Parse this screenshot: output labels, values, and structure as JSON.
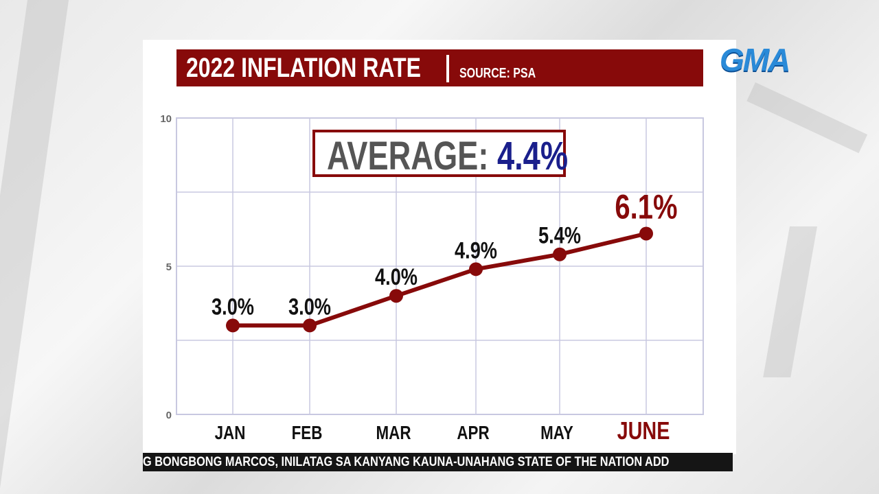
{
  "logo": "GMA",
  "header": {
    "title": "2022 INFLATION RATE",
    "source": "SOURCE: PSA"
  },
  "ticker": "G BONGBONG MARCOS, INILATAG SA KANYANG KAUNA-UNAHANG STATE OF THE NATION ADD",
  "chart_data": {
    "type": "line",
    "title": "2022 INFLATION RATE",
    "annotation": {
      "label": "AVERAGE:",
      "value": "4.4%"
    },
    "categories": [
      "JAN",
      "FEB",
      "MAR",
      "APR",
      "MAY",
      "JUNE"
    ],
    "values": [
      3.0,
      3.0,
      4.0,
      4.9,
      5.4,
      6.1
    ],
    "data_labels": [
      "3.0%",
      "3.0%",
      "4.0%",
      "4.9%",
      "5.4%",
      "6.1%"
    ],
    "yticks": [
      "0",
      "5",
      "10"
    ],
    "ylim": [
      0,
      10
    ],
    "grid": true,
    "colors": {
      "line": "#870a0a",
      "highlight": "#870a0a",
      "average": "#1a1f8c",
      "text": "#111111",
      "grid": "#c8c8e0"
    }
  }
}
